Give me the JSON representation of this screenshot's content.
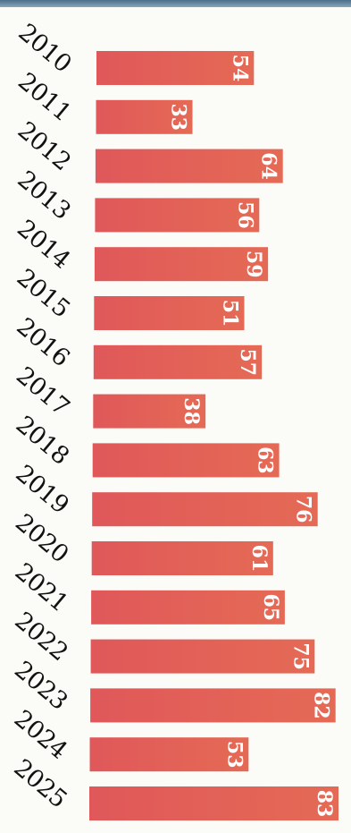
{
  "chart_data": {
    "type": "bar",
    "orientation": "horizontal",
    "categories": [
      "2010",
      "2011",
      "2012",
      "2013",
      "2014",
      "2015",
      "2016",
      "2017",
      "2018",
      "2019",
      "2020",
      "2021",
      "2022",
      "2023",
      "2024",
      "2025"
    ],
    "values": [
      54,
      33,
      64,
      56,
      59,
      51,
      57,
      38,
      63,
      76,
      61,
      65,
      75,
      82,
      53,
      83
    ],
    "title": "",
    "xlabel": "",
    "ylabel": "",
    "xlim": [
      0,
      83
    ],
    "grid": false,
    "legend": "none",
    "bar_color": "#df5a55",
    "label_color": "#ffffff"
  }
}
